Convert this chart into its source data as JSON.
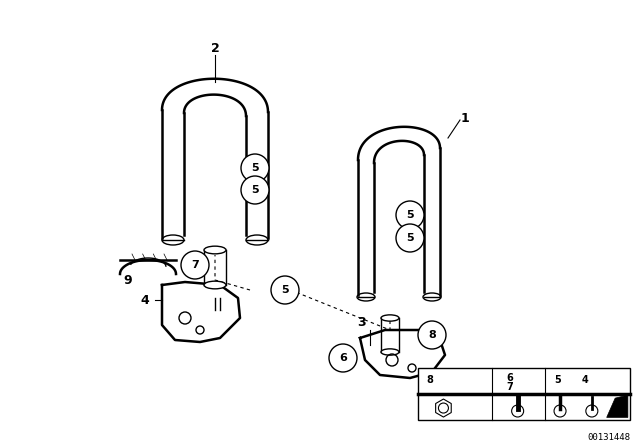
{
  "bg_color": "#ffffff",
  "line_color": "#000000",
  "part_number": "00131448",
  "fig_width": 6.4,
  "fig_height": 4.48,
  "dpi": 100
}
